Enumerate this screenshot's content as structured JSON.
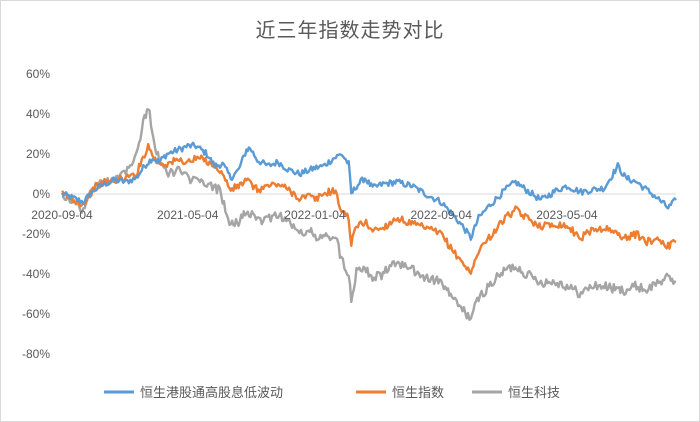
{
  "chart_data": {
    "type": "line",
    "title": "近三年指数走势对比",
    "xlabel": "",
    "ylabel": "",
    "ylim": [
      -80,
      60
    ],
    "y_ticks": [
      60,
      40,
      20,
      0,
      -20,
      -40,
      -60,
      -80
    ],
    "y_tick_labels": [
      "60%",
      "40%",
      "20%",
      "0%",
      "-20%",
      "-40%",
      "-60%",
      "-80%"
    ],
    "x_tick_labels": [
      "2020-09-04",
      "2021-05-04",
      "2022-01-04",
      "2022-09-04",
      "2023-05-04"
    ],
    "x_tick_dates": [
      "2020-09-04",
      "2021-05-04",
      "2022-01-04",
      "2022-09-04",
      "2023-05-04"
    ],
    "x_range": [
      "2020-09-04",
      "2023-11-30"
    ],
    "legend_position": "bottom",
    "grid": false,
    "series": [
      {
        "name": "恒生港股通高股息低波动",
        "color": "#5b9bd5",
        "points": [
          [
            "2020-09-04",
            0
          ],
          [
            "2020-09-25",
            -2
          ],
          [
            "2020-10-15",
            -4
          ],
          [
            "2020-11-05",
            2
          ],
          [
            "2020-11-25",
            5
          ],
          [
            "2020-12-15",
            7
          ],
          [
            "2021-01-05",
            6
          ],
          [
            "2021-01-25",
            8
          ],
          [
            "2021-02-10",
            14
          ],
          [
            "2021-02-25",
            18
          ],
          [
            "2021-03-10",
            16
          ],
          [
            "2021-03-25",
            20
          ],
          [
            "2021-04-15",
            22
          ],
          [
            "2021-05-04",
            24
          ],
          [
            "2021-05-20",
            24
          ],
          [
            "2021-06-10",
            20
          ],
          [
            "2021-06-25",
            14
          ],
          [
            "2021-07-10",
            15
          ],
          [
            "2021-07-26",
            8
          ],
          [
            "2021-08-10",
            12
          ],
          [
            "2021-08-25",
            22
          ],
          [
            "2021-09-01",
            23
          ],
          [
            "2021-09-15",
            17
          ],
          [
            "2021-10-05",
            14
          ],
          [
            "2021-10-25",
            16
          ],
          [
            "2021-11-15",
            12
          ],
          [
            "2021-12-05",
            10
          ],
          [
            "2021-12-25",
            12
          ],
          [
            "2022-01-04",
            13
          ],
          [
            "2022-01-20",
            14
          ],
          [
            "2022-02-10",
            18
          ],
          [
            "2022-02-24",
            20
          ],
          [
            "2022-03-10",
            15
          ],
          [
            "2022-03-15",
            0
          ],
          [
            "2022-03-25",
            4
          ],
          [
            "2022-04-10",
            8
          ],
          [
            "2022-04-25",
            3
          ],
          [
            "2022-05-15",
            5
          ],
          [
            "2022-06-10",
            6
          ],
          [
            "2022-07-10",
            4
          ],
          [
            "2022-08-05",
            0
          ],
          [
            "2022-09-04",
            -4
          ],
          [
            "2022-09-25",
            -10
          ],
          [
            "2022-10-15",
            -16
          ],
          [
            "2022-10-31",
            -22
          ],
          [
            "2022-11-15",
            -12
          ],
          [
            "2022-12-05",
            -6
          ],
          [
            "2023-01-05",
            2
          ],
          [
            "2023-01-25",
            6
          ],
          [
            "2023-02-15",
            2
          ],
          [
            "2023-03-15",
            -3
          ],
          [
            "2023-04-15",
            2
          ],
          [
            "2023-05-04",
            4
          ],
          [
            "2023-05-31",
            1
          ],
          [
            "2023-06-20",
            2
          ],
          [
            "2023-07-15",
            3
          ],
          [
            "2023-08-10",
            14
          ],
          [
            "2023-08-25",
            8
          ],
          [
            "2023-09-15",
            6
          ],
          [
            "2023-10-05",
            2
          ],
          [
            "2023-10-25",
            -2
          ],
          [
            "2023-11-15",
            -7
          ],
          [
            "2023-11-30",
            -3
          ]
        ]
      },
      {
        "name": "恒生指数",
        "color": "#ed7d31",
        "points": [
          [
            "2020-09-04",
            0
          ],
          [
            "2020-09-25",
            -3
          ],
          [
            "2020-10-15",
            -5
          ],
          [
            "2020-11-05",
            3
          ],
          [
            "2020-11-25",
            6
          ],
          [
            "2020-12-15",
            7
          ],
          [
            "2021-01-05",
            8
          ],
          [
            "2021-01-25",
            10
          ],
          [
            "2021-02-10",
            20
          ],
          [
            "2021-02-17",
            24
          ],
          [
            "2021-03-05",
            16
          ],
          [
            "2021-03-25",
            15
          ],
          [
            "2021-04-15",
            17
          ],
          [
            "2021-05-04",
            16
          ],
          [
            "2021-05-25",
            18
          ],
          [
            "2021-06-15",
            16
          ],
          [
            "2021-07-05",
            12
          ],
          [
            "2021-07-26",
            2
          ],
          [
            "2021-08-10",
            4
          ],
          [
            "2021-08-25",
            7
          ],
          [
            "2021-09-15",
            2
          ],
          [
            "2021-10-05",
            4
          ],
          [
            "2021-10-25",
            5
          ],
          [
            "2021-11-15",
            2
          ],
          [
            "2021-12-05",
            -2
          ],
          [
            "2021-12-25",
            -1
          ],
          [
            "2022-01-04",
            -3
          ],
          [
            "2022-01-20",
            0
          ],
          [
            "2022-02-10",
            2
          ],
          [
            "2022-02-24",
            -8
          ],
          [
            "2022-03-10",
            -12
          ],
          [
            "2022-03-15",
            -25
          ],
          [
            "2022-03-25",
            -16
          ],
          [
            "2022-04-10",
            -14
          ],
          [
            "2022-04-25",
            -18
          ],
          [
            "2022-05-15",
            -17
          ],
          [
            "2022-06-10",
            -12
          ],
          [
            "2022-07-10",
            -15
          ],
          [
            "2022-08-05",
            -17
          ],
          [
            "2022-09-04",
            -20
          ],
          [
            "2022-09-25",
            -28
          ],
          [
            "2022-10-15",
            -34
          ],
          [
            "2022-10-31",
            -40
          ],
          [
            "2022-11-15",
            -28
          ],
          [
            "2022-12-05",
            -22
          ],
          [
            "2023-01-05",
            -12
          ],
          [
            "2023-01-25",
            -8
          ],
          [
            "2023-02-15",
            -12
          ],
          [
            "2023-03-15",
            -16
          ],
          [
            "2023-04-15",
            -15
          ],
          [
            "2023-05-04",
            -16
          ],
          [
            "2023-05-31",
            -22
          ],
          [
            "2023-06-20",
            -18
          ],
          [
            "2023-07-15",
            -17
          ],
          [
            "2023-08-10",
            -20
          ],
          [
            "2023-08-25",
            -22
          ],
          [
            "2023-09-15",
            -20
          ],
          [
            "2023-10-05",
            -24
          ],
          [
            "2023-10-25",
            -22
          ],
          [
            "2023-11-15",
            -26
          ],
          [
            "2023-11-30",
            -24
          ]
        ]
      },
      {
        "name": "恒生科技",
        "color": "#a5a5a5",
        "points": [
          [
            "2020-09-04",
            0
          ],
          [
            "2020-09-25",
            -4
          ],
          [
            "2020-10-15",
            -8
          ],
          [
            "2020-11-05",
            4
          ],
          [
            "2020-11-25",
            6
          ],
          [
            "2020-12-15",
            8
          ],
          [
            "2021-01-05",
            12
          ],
          [
            "2021-01-25",
            20
          ],
          [
            "2021-02-10",
            38
          ],
          [
            "2021-02-17",
            44
          ],
          [
            "2021-03-05",
            20
          ],
          [
            "2021-03-25",
            10
          ],
          [
            "2021-04-15",
            12
          ],
          [
            "2021-05-04",
            8
          ],
          [
            "2021-05-25",
            6
          ],
          [
            "2021-06-15",
            4
          ],
          [
            "2021-07-05",
            2
          ],
          [
            "2021-07-26",
            -16
          ],
          [
            "2021-08-10",
            -14
          ],
          [
            "2021-08-25",
            -8
          ],
          [
            "2021-09-15",
            -14
          ],
          [
            "2021-10-05",
            -12
          ],
          [
            "2021-10-25",
            -10
          ],
          [
            "2021-11-15",
            -14
          ],
          [
            "2021-12-05",
            -20
          ],
          [
            "2021-12-25",
            -18
          ],
          [
            "2022-01-04",
            -22
          ],
          [
            "2022-01-20",
            -22
          ],
          [
            "2022-02-10",
            -20
          ],
          [
            "2022-02-24",
            -32
          ],
          [
            "2022-03-10",
            -40
          ],
          [
            "2022-03-15",
            -53
          ],
          [
            "2022-03-25",
            -38
          ],
          [
            "2022-04-10",
            -36
          ],
          [
            "2022-04-25",
            -42
          ],
          [
            "2022-05-15",
            -40
          ],
          [
            "2022-06-10",
            -34
          ],
          [
            "2022-07-10",
            -38
          ],
          [
            "2022-08-05",
            -42
          ],
          [
            "2022-09-04",
            -44
          ],
          [
            "2022-09-25",
            -52
          ],
          [
            "2022-10-15",
            -58
          ],
          [
            "2022-10-31",
            -62
          ],
          [
            "2022-11-15",
            -52
          ],
          [
            "2022-12-05",
            -46
          ],
          [
            "2023-01-05",
            -38
          ],
          [
            "2023-01-25",
            -36
          ],
          [
            "2023-02-15",
            -40
          ],
          [
            "2023-03-15",
            -44
          ],
          [
            "2023-04-15",
            -44
          ],
          [
            "2023-05-04",
            -46
          ],
          [
            "2023-05-31",
            -50
          ],
          [
            "2023-06-20",
            -46
          ],
          [
            "2023-07-15",
            -46
          ],
          [
            "2023-08-10",
            -48
          ],
          [
            "2023-08-25",
            -48
          ],
          [
            "2023-09-15",
            -46
          ],
          [
            "2023-10-05",
            -48
          ],
          [
            "2023-10-25",
            -44
          ],
          [
            "2023-11-15",
            -42
          ],
          [
            "2023-11-30",
            -44
          ]
        ]
      }
    ]
  }
}
